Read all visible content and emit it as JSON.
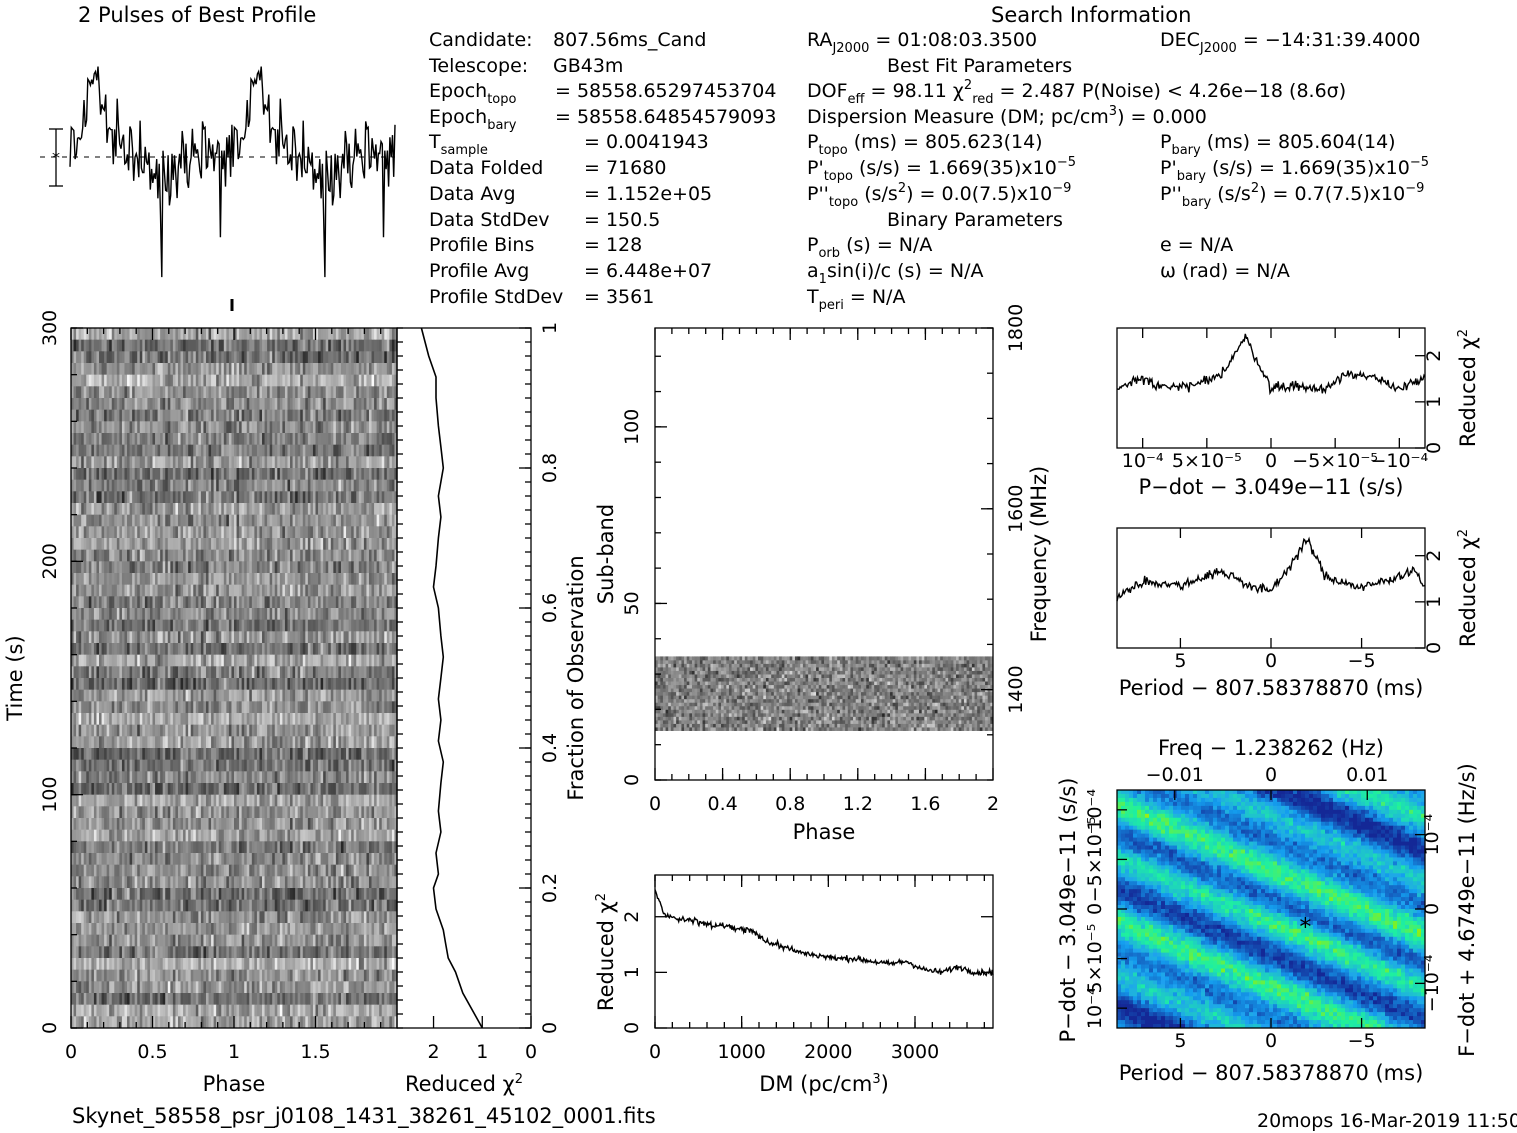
{
  "page": {
    "profile_title": "2 Pulses of Best Profile",
    "search_title": "Search Information",
    "best_fit_title": "Best Fit Parameters",
    "binary_title": "Binary Parameters",
    "filename": "Skynet_58558_psr_j0108_1431_38261_45102_0001.fits",
    "footer": "20mops  16-Mar-2019 11:50"
  },
  "info_left": [
    {
      "label": "Candidate:",
      "value": "807.56ms_Cand"
    },
    {
      "label": "Telescope:",
      "value": "GB43m"
    },
    {
      "label": "Epoch",
      "sub": "topo",
      "value": "= 58558.65297453704"
    },
    {
      "label": "Epoch",
      "sub": "bary",
      "value": "= 58558.64854579093"
    },
    {
      "label": "T",
      "sub": "sample",
      "value": "=   0.0041943"
    },
    {
      "label": "Data Folded",
      "value": "=   71680"
    },
    {
      "label": "Data Avg",
      "value": "=   1.152e+05"
    },
    {
      "label": "Data StdDev",
      "value": "=   150.5"
    },
    {
      "label": "Profile Bins",
      "value": "=   128"
    },
    {
      "label": "Profile Avg",
      "value": "=   6.448e+07"
    },
    {
      "label": "Profile StdDev",
      "value": "=   3561"
    }
  ],
  "info_mid": {
    "ra_label": "RA",
    "ra_sub": "J2000",
    "ra_value": "= 01:08:03.3500",
    "dec_label": "DEC",
    "dec_sub": "J2000",
    "dec_value": "= −14:31:39.4000",
    "dof": "DOF",
    "dof_sub": "eff",
    "dof_value": "= 98.11",
    "chi_sym": "χ",
    "chi_sup": "2",
    "chi_sub": "red",
    "chi_value": "= 2.487",
    "pnoise": "P(Noise) < 4.26e−18   (8.6σ)",
    "dm_line": "Dispersion Measure (DM; pc/cm",
    "dm_sup": "3",
    "dm_value": ") = 0.000",
    "p_topo_label": "P",
    "p_topo_sub": "topo",
    "p_topo_value": "(ms) =  805.623(14)",
    "pd_topo_label": "P'",
    "pd_topo_sub": "topo",
    "pd_topo_value": "(s/s) =  1.669(35)x10",
    "pd_topo_exp": "−5",
    "pdd_topo_label": "P''",
    "pdd_topo_sub": "topo",
    "pdd_topo_value": "(s/s",
    "pdd_topo_sup": "2",
    "pdd_topo_value2": ") = 0.0(7.5)x10",
    "pdd_topo_exp": "−9",
    "p_bary_label": "P",
    "p_bary_sub": "bary",
    "p_bary_value": "(ms) =  805.604(14)",
    "pd_bary_label": "P'",
    "pd_bary_sub": "bary",
    "pd_bary_value": "(s/s) =  1.669(35)x10",
    "pd_bary_exp": "−5",
    "pdd_bary_label": "P''",
    "pdd_bary_sub": "bary",
    "pdd_bary_value": "(s/s",
    "pdd_bary_sup": "2",
    "pdd_bary_value2": ") =  0.7(7.5)x10",
    "pdd_bary_exp": "−9",
    "porb_label": "P",
    "porb_sub": "orb",
    "porb_value": "(s) = N/A",
    "a1_label": "a",
    "a1_sub": "1",
    "a1_value": "sin(i)/c (s) = N/A",
    "tperi_label": "T",
    "tperi_sub": "peri",
    "tperi_value": "= N/A",
    "e_value": "e = N/A",
    "omega_value": "ω (rad) = N/A"
  },
  "chart_data": [
    {
      "type": "line",
      "title": "2 Pulses of Best Profile",
      "x_range": [
        0,
        2
      ],
      "note_values": "profile intensity, arbitrary units; two identical pulses with peaks near phase 0.15 and 1.15"
    },
    {
      "type": "heatmap",
      "name": "time-phase",
      "xlabel": "Phase",
      "ylabel": "Time (s)",
      "x_ticks": [
        "0",
        "0.5",
        "1",
        "1.5"
      ],
      "y_ticks": [
        "0",
        "100",
        "200",
        "300"
      ],
      "xlim": [
        0,
        2
      ],
      "ylim": [
        0,
        300
      ]
    },
    {
      "type": "line",
      "name": "time-chi2",
      "xlabel": "Reduced χ²",
      "ylabel": "Fraction of Observation",
      "x_ticks": [
        "2",
        "1",
        "0"
      ],
      "y_ticks": [
        "0",
        "0.2",
        "0.4",
        "0.6",
        "0.8",
        "1"
      ],
      "points_fraction": [
        0,
        0.05,
        0.08,
        0.1,
        0.12,
        0.14,
        0.17,
        0.2,
        0.22,
        0.25,
        0.28,
        0.31,
        0.35,
        0.38,
        0.41,
        0.44,
        0.47,
        0.5,
        0.53,
        0.56,
        0.6,
        0.63,
        0.66,
        0.7,
        0.73,
        0.76,
        0.8,
        0.83,
        0.86,
        0.9,
        0.93,
        0.96,
        1.0
      ],
      "points_chi2": [
        1.0,
        1.4,
        1.55,
        1.7,
        1.75,
        1.8,
        1.95,
        2.0,
        1.9,
        1.95,
        1.85,
        1.9,
        1.85,
        1.8,
        1.9,
        1.85,
        1.9,
        1.85,
        1.8,
        1.85,
        1.9,
        2.0,
        1.95,
        1.9,
        1.85,
        1.9,
        1.8,
        1.85,
        1.9,
        1.95,
        1.95,
        2.1,
        2.25
      ]
    },
    {
      "type": "heatmap",
      "name": "subband-phase",
      "xlabel": "Phase",
      "ylabel": "Sub-band",
      "y2label": "Frequency (MHz)",
      "x_ticks": [
        "0",
        "0.4",
        "0.8",
        "1.2",
        "1.6",
        "2"
      ],
      "y_ticks": [
        "0",
        "50",
        "100"
      ],
      "y2_ticks": [
        "1400",
        "1600",
        "1800"
      ],
      "band_range": [
        14,
        35
      ],
      "ylim": [
        0,
        128
      ]
    },
    {
      "type": "line",
      "name": "dm-chi2",
      "xlabel": "DM (pc/cm³)",
      "ylabel": "Reduced χ²",
      "x_ticks": [
        "0",
        "1000",
        "2000",
        "3000"
      ],
      "y_ticks": [
        "0",
        "1",
        "2"
      ],
      "xlim": [
        0,
        3900
      ],
      "ylim": [
        0,
        2.75
      ],
      "x": [
        0,
        100,
        300,
        500,
        700,
        900,
        1100,
        1300,
        1500,
        1700,
        1900,
        2100,
        2300,
        2500,
        2700,
        2900,
        3100,
        3300,
        3500,
        3700,
        3900
      ],
      "y": [
        2.5,
        2.05,
        1.95,
        1.9,
        1.85,
        1.8,
        1.75,
        1.55,
        1.45,
        1.35,
        1.3,
        1.25,
        1.25,
        1.2,
        1.15,
        1.2,
        1.05,
        1.0,
        1.1,
        1.0,
        1.0
      ]
    },
    {
      "type": "line",
      "name": "pdot-chi2",
      "xlabel": "P−dot − 3.049e−11 (s/s)",
      "ylabel": "Reduced χ²",
      "x_ticks": [
        "10⁻⁴",
        "5×10⁻⁵",
        "0",
        "−5×10⁻⁵",
        "−10⁻⁴"
      ],
      "y_ticks": [
        "0",
        "1",
        "2"
      ],
      "xlim": [
        0.00012,
        -0.00012
      ],
      "ylim": [
        0,
        2.6
      ],
      "x": [
        0.00012,
        0.0001,
        8e-05,
        6e-05,
        4e-05,
        2e-05,
        0,
        -2e-05,
        -4e-05,
        -6e-05,
        -8e-05,
        -0.0001,
        -0.00012
      ],
      "y": [
        1.3,
        1.5,
        1.3,
        1.35,
        1.55,
        2.4,
        1.3,
        1.35,
        1.25,
        1.65,
        1.5,
        1.3,
        1.5
      ]
    },
    {
      "type": "line",
      "name": "period-chi2",
      "xlabel": "Period − 807.58378870 (ms)",
      "ylabel": "Reduced χ²",
      "x_ticks": [
        "5",
        "0",
        "−5"
      ],
      "y_ticks": [
        "0",
        "1",
        "2"
      ],
      "xlim": [
        8.5,
        -8.5
      ],
      "ylim": [
        0,
        2.6
      ],
      "x": [
        8.5,
        7,
        5,
        3,
        2,
        1,
        0,
        -1,
        -2,
        -3,
        -5,
        -7,
        -8,
        -8.5
      ],
      "y": [
        1.1,
        1.45,
        1.35,
        1.65,
        1.55,
        1.3,
        1.25,
        1.75,
        2.35,
        1.55,
        1.3,
        1.55,
        1.7,
        1.25
      ]
    },
    {
      "type": "heatmap",
      "name": "period-pdot",
      "title": "Freq − 1.238262 (Hz)",
      "xlabel": "Period − 807.58378870 (ms)",
      "ylabel": "P−dot − 3.049e−11 (s/s)",
      "y2label": "F−dot + 4.6749e−11 (Hz/s)",
      "x_ticks": [
        "5",
        "0",
        "−5"
      ],
      "x2_ticks": [
        "−0.01",
        "0",
        "0.01"
      ],
      "y_ticks": [
        "10⁻⁴",
        "5×10⁻⁵",
        "0",
        "−5×10⁻⁵",
        "10⁻⁴"
      ],
      "y2_ticks": [
        "−10⁻⁴",
        "0",
        "10⁻⁴"
      ],
      "best_marker": [
        -1.9,
        0.1
      ]
    }
  ]
}
